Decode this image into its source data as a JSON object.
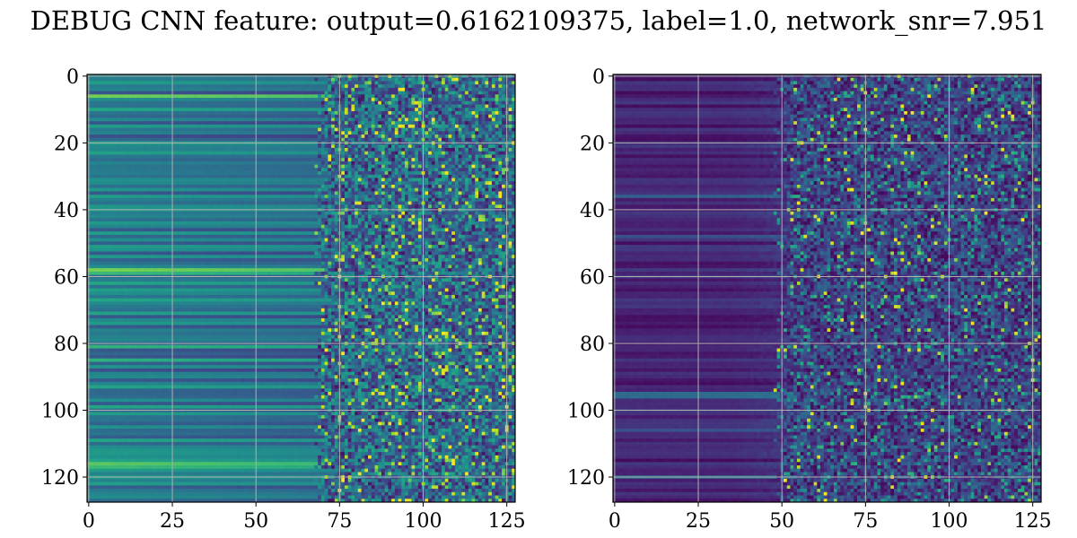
{
  "title": "DEBUG CNN feature: output=0.6162109375, label=1.0, network_snr=7.951",
  "colors": {
    "background": "#ffffff",
    "grid": "#b0b0b0",
    "colormap": "viridis"
  },
  "chart_data": [
    {
      "type": "heatmap",
      "rows": 128,
      "cols": 128,
      "colormap": "viridis",
      "grid": true,
      "xlim": [
        -0.5,
        127.5
      ],
      "ylim": [
        127.5,
        -0.5
      ],
      "xticks": [
        0,
        25,
        50,
        75,
        100,
        125
      ],
      "yticks": [
        0,
        20,
        40,
        60,
        80,
        100,
        120
      ],
      "xtick_labels": [
        "0",
        "25",
        "50",
        "75",
        "100",
        "125"
      ],
      "ytick_labels": [
        "0",
        "20",
        "40",
        "60",
        "80",
        "100",
        "120"
      ],
      "value_range": [
        0,
        1
      ],
      "description_levels": {
        "smooth_columns_0_to_70": "row-wise constant teal/green bands, mean about 0.40",
        "noisy_columns_70_to_127": "speckled values with bright yellow spots, mean about 0.35"
      }
    },
    {
      "type": "heatmap",
      "rows": 128,
      "cols": 128,
      "colormap": "viridis",
      "grid": true,
      "xlim": [
        -0.5,
        127.5
      ],
      "ylim": [
        127.5,
        -0.5
      ],
      "xticks": [
        0,
        25,
        50,
        75,
        100,
        125
      ],
      "yticks": [
        0,
        20,
        40,
        60,
        80,
        100,
        120
      ],
      "xtick_labels": [
        "0",
        "25",
        "50",
        "75",
        "100",
        "125"
      ],
      "ytick_labels": [
        "0",
        "20",
        "40",
        "60",
        "80",
        "100",
        "120"
      ],
      "value_range": [
        0,
        1
      ],
      "description_levels": {
        "smooth_columns_0_to_50": "dark purple row bands, mean about 0.08",
        "noisy_columns_50_to_127": "speckled purple/teal with sparse yellow spots, mean about 0.22"
      }
    }
  ]
}
